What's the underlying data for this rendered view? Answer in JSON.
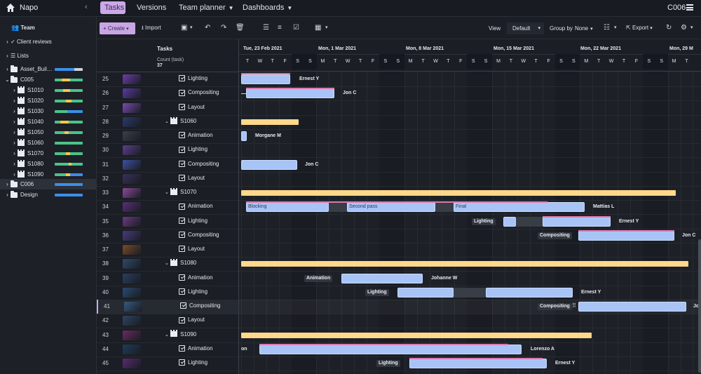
{
  "app": {
    "name": "Napo",
    "project": "C006"
  },
  "nav": {
    "tabs": [
      {
        "label": "Tasks"
      },
      {
        "label": "Versions"
      },
      {
        "label": "Team planner"
      },
      {
        "label": "Dashboards"
      }
    ]
  },
  "sidebar": {
    "team": "Team",
    "client_reviews": "Client reviews",
    "lists": "Lists",
    "folders": [
      {
        "label": "Asset_Buil…",
        "color_a": "#3a8eea",
        "color_b": "#cbd2dd"
      },
      {
        "label": "C005"
      },
      {
        "label": "S1010"
      },
      {
        "label": "S1020"
      },
      {
        "label": "S1030"
      },
      {
        "label": "S1040"
      },
      {
        "label": "S1050"
      },
      {
        "label": "S1060"
      },
      {
        "label": "S1070"
      },
      {
        "label": "S1080"
      },
      {
        "label": "S1090"
      },
      {
        "label": "C006"
      },
      {
        "label": "Design"
      }
    ]
  },
  "toolbar": {
    "create": "Create",
    "import": "Import",
    "view_label": "View",
    "view_value": "Default",
    "groupby_label": "Group by",
    "groupby_value": "None",
    "export": "Export"
  },
  "task_header": {
    "title": "Tasks",
    "count_label": "Count (task)",
    "count_value": "37"
  },
  "gantt_header": {
    "weeks": [
      "Tue, 23 Feb 2021",
      "Mon, 1 Mar 2021",
      "Mon, 8 Mar 2021",
      "Mon, 15 Mar 2021",
      "Mon, 22 Mar 2021",
      "Mon, 29 M"
    ],
    "days": [
      "T",
      "W",
      "T",
      "F",
      "S",
      "S",
      "M",
      "T",
      "W",
      "T",
      "F",
      "S",
      "S",
      "M",
      "T",
      "W",
      "T",
      "F",
      "S",
      "S",
      "M",
      "T",
      "W",
      "T",
      "F",
      "S",
      "S",
      "M",
      "T",
      "W",
      "T",
      "F",
      "S",
      "S",
      "M",
      "T"
    ]
  },
  "rows": [
    {
      "num": "25",
      "name": "Lighting",
      "type": "task"
    },
    {
      "num": "26",
      "name": "Compositing",
      "type": "task"
    },
    {
      "num": "27",
      "name": "Layout",
      "type": "task"
    },
    {
      "num": "28",
      "name": "S1060",
      "type": "group"
    },
    {
      "num": "29",
      "name": "Animation",
      "type": "task"
    },
    {
      "num": "30",
      "name": "Lighting",
      "type": "task"
    },
    {
      "num": "31",
      "name": "Compositing",
      "type": "task"
    },
    {
      "num": "32",
      "name": "Layout",
      "type": "task"
    },
    {
      "num": "33",
      "name": "S1070",
      "type": "group"
    },
    {
      "num": "34",
      "name": "Animation",
      "type": "task"
    },
    {
      "num": "35",
      "name": "Lighting",
      "type": "task"
    },
    {
      "num": "36",
      "name": "Compositing",
      "type": "task"
    },
    {
      "num": "37",
      "name": "Layout",
      "type": "task"
    },
    {
      "num": "38",
      "name": "S1080",
      "type": "group"
    },
    {
      "num": "39",
      "name": "Animation",
      "type": "task"
    },
    {
      "num": "40",
      "name": "Lighting",
      "type": "task"
    },
    {
      "num": "41",
      "name": "Compositing",
      "type": "task"
    },
    {
      "num": "42",
      "name": "Layout",
      "type": "task"
    },
    {
      "num": "43",
      "name": "S1090",
      "type": "group"
    },
    {
      "num": "44",
      "name": "Animation",
      "type": "task"
    },
    {
      "num": "45",
      "name": "Lighting",
      "type": "task"
    }
  ],
  "gantt_labels": {
    "r25": "Ernest Y",
    "r26": "Jon C",
    "r29": "Morgane M",
    "r31": "Jon C",
    "r34_assignee": "Mattias L",
    "r34_p1": "Blocking",
    "r34_p2": "Second pass",
    "r34_p3": "Final",
    "r35_tag": "Lighting",
    "r35_assignee": "Ernest Y",
    "r36_tag": "Compositing",
    "r36_assignee": "Jon C",
    "r39_tag": "Animation",
    "r39_assignee": "Johanne W",
    "r40_tag": "Lighting",
    "r40_assignee": "Ernest Y",
    "r41_tag": "Compositing",
    "r41_assignee": "Jo",
    "r44_left": "on",
    "r44_assignee": "Lorenzo A",
    "r45_tag": "Lighting",
    "r45_assignee": "Ernest Y"
  },
  "colors": {
    "accent": "#c9a7e8",
    "bar": "#a8c4f7",
    "summary": "#ffd88a",
    "progress_green": "#4cc38a",
    "progress_yellow": "#f2c94c",
    "progress_blue": "#3a8eea"
  }
}
